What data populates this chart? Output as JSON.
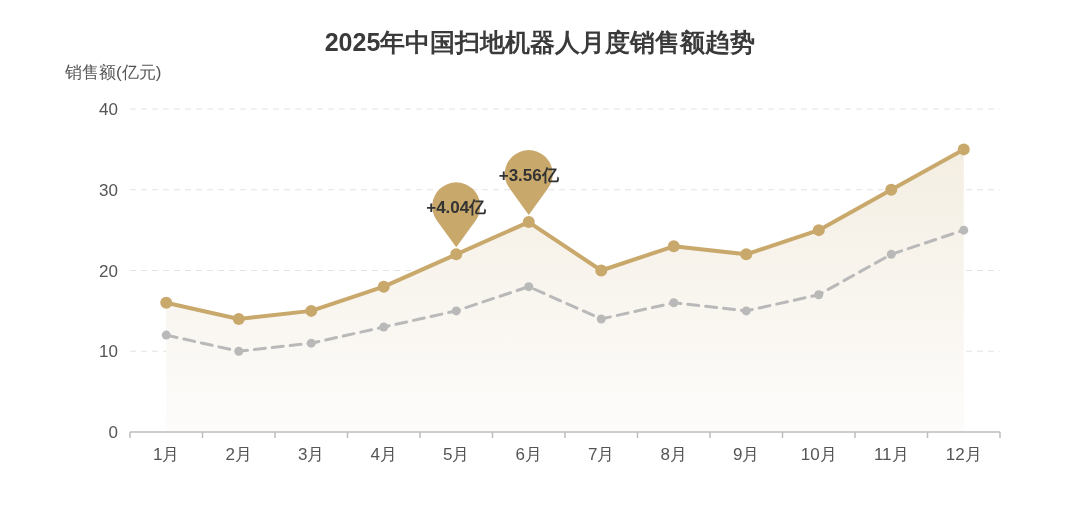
{
  "chart_data": {
    "type": "line",
    "title": "2025年中国扫地机器人月度销售额趋势",
    "ylabel": "销售额(亿元)",
    "categories": [
      "1月",
      "2月",
      "3月",
      "4月",
      "5月",
      "6月",
      "7月",
      "8月",
      "9月",
      "10月",
      "11月",
      "12月"
    ],
    "series": [
      {
        "type": "area",
        "color": "#c9a86c",
        "line_style": "solid",
        "values": [
          16,
          14,
          15,
          18,
          22,
          26,
          20,
          23,
          22,
          25,
          30,
          35
        ]
      },
      {
        "type": "line",
        "color": "#b9b9b9",
        "line_style": "dashed",
        "values": [
          12,
          10,
          11,
          13,
          15,
          18,
          14,
          16,
          15,
          17,
          22,
          25
        ]
      }
    ],
    "ylim": [
      0,
      40
    ],
    "yticks": [
      0,
      10,
      20,
      30,
      40
    ],
    "grid": "y",
    "marker": "circle",
    "annotations": [
      {
        "text": "+4.04亿",
        "x": "5月",
        "y": 22
      },
      {
        "text": "+3.56亿",
        "x": "6月",
        "y": 26
      }
    ]
  }
}
